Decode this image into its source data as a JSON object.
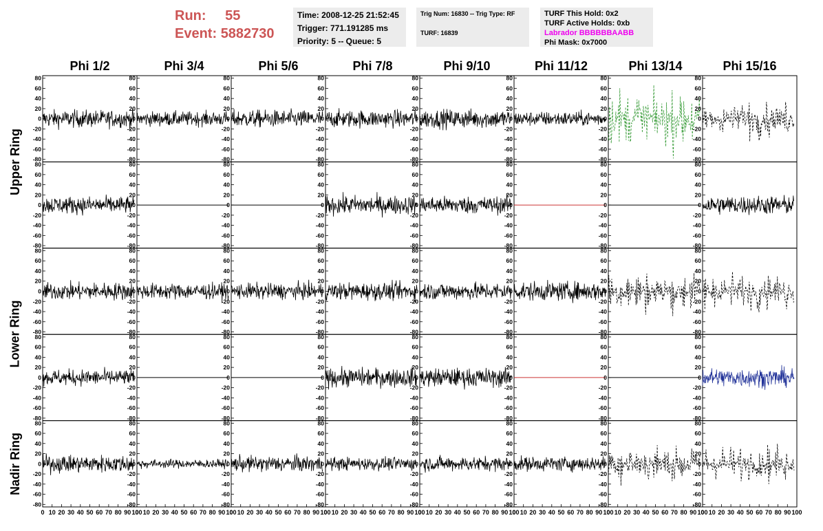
{
  "header": {
    "run_label": "Run:",
    "run_value": "55",
    "event_label": "Event:",
    "event_value": "5882730",
    "time": "Time: 2008-12-25 21:52:45",
    "trigger": "Trigger: 771.191285 ms",
    "priority": "Priority: 5 -- Queue: 5",
    "trig_num": "Trig Num: 16830 -- Trig Type: RF",
    "turf": "TURF: 16839",
    "turf_hold": "TURF This Hold: 0x2",
    "turf_active": "TURF Active Holds: 0xb",
    "labrador": "Labrador BBBBBBAABB",
    "phi_mask": "Phi Mask: 0x7000"
  },
  "colors": {
    "run_text": "#cc5555",
    "labrador_text": "#ee00ee",
    "trace_default": "#000000",
    "trace_green": "#339933",
    "trace_blue": "#223399",
    "trace_red": "#cc3333"
  },
  "chart_data": {
    "type": "line",
    "columns": [
      "Phi 1/2",
      "Phi 3/4",
      "Phi 5/6",
      "Phi 7/8",
      "Phi 9/10",
      "Phi 11/12",
      "Phi 13/14",
      "Phi 15/16"
    ],
    "ring_labels": [
      {
        "text": "Upper Ring",
        "rows": [
          0,
          1
        ]
      },
      {
        "text": "Lower Ring",
        "rows": [
          2,
          3
        ]
      },
      {
        "text": "Nadir Ring",
        "rows": [
          4
        ]
      }
    ],
    "ylim": [
      -85,
      85
    ],
    "y_ticks": [
      -80,
      -60,
      -40,
      -20,
      0,
      20,
      40,
      60,
      80
    ],
    "xlim": [
      0,
      100
    ],
    "x_ticks": [
      0,
      10,
      20,
      30,
      40,
      50,
      60,
      70,
      80,
      90,
      100
    ],
    "x_tick_labels": [
      "0",
      "10",
      "20",
      "30",
      "40",
      "50",
      "60",
      "70",
      "80",
      "90",
      "100"
    ],
    "grid": false,
    "panels": [
      [
        {
          "style": "noise",
          "amp": 12,
          "color": "#000000"
        },
        {
          "style": "noise",
          "amp": 10,
          "color": "#000000"
        },
        {
          "style": "noise",
          "amp": 12,
          "color": "#000000"
        },
        {
          "style": "noise",
          "amp": 12,
          "color": "#000000"
        },
        {
          "style": "noise",
          "amp": 13,
          "color": "#000000"
        },
        {
          "style": "noise",
          "amp": 10,
          "color": "#000000"
        },
        {
          "style": "dashed",
          "amp": 30,
          "color": "#339933"
        },
        {
          "style": "dashed",
          "amp": 20,
          "color": "#000000"
        }
      ],
      [
        {
          "style": "noise",
          "amp": 12,
          "color": "#000000"
        },
        {
          "style": "flat",
          "amp": 0,
          "color": "#000000"
        },
        {
          "style": "flat",
          "amp": 0,
          "color": "#000000"
        },
        {
          "style": "noise",
          "amp": 13,
          "color": "#000000"
        },
        {
          "style": "noise",
          "amp": 12,
          "color": "#000000"
        },
        {
          "style": "flat",
          "amp": 0,
          "color": "#cc3333"
        },
        {
          "style": "flat",
          "amp": 0,
          "color": "#000000"
        },
        {
          "style": "noise",
          "amp": 13,
          "color": "#000000"
        }
      ],
      [
        {
          "style": "noise",
          "amp": 12,
          "color": "#000000"
        },
        {
          "style": "noise",
          "amp": 11,
          "color": "#000000"
        },
        {
          "style": "noise",
          "amp": 11,
          "color": "#000000"
        },
        {
          "style": "noise",
          "amp": 12,
          "color": "#000000"
        },
        {
          "style": "noise",
          "amp": 12,
          "color": "#000000"
        },
        {
          "style": "noise",
          "amp": 13,
          "color": "#000000"
        },
        {
          "style": "dashed",
          "amp": 22,
          "color": "#000000"
        },
        {
          "style": "dashed",
          "amp": 18,
          "color": "#000000"
        }
      ],
      [
        {
          "style": "noise",
          "amp": 11,
          "color": "#000000"
        },
        {
          "style": "flat",
          "amp": 0,
          "color": "#000000"
        },
        {
          "style": "flat",
          "amp": 0,
          "color": "#000000"
        },
        {
          "style": "noise",
          "amp": 13,
          "color": "#000000"
        },
        {
          "style": "noise",
          "amp": 13,
          "color": "#000000"
        },
        {
          "style": "flat",
          "amp": 0,
          "color": "#cc3333"
        },
        {
          "style": "flat",
          "amp": 0,
          "color": "#000000"
        },
        {
          "style": "noise",
          "amp": 13,
          "color": "#223399"
        }
      ],
      [
        {
          "style": "noise",
          "amp": 12,
          "color": "#000000"
        },
        {
          "style": "noise",
          "amp": 6,
          "color": "#000000"
        },
        {
          "style": "noise",
          "amp": 11,
          "color": "#000000"
        },
        {
          "style": "noise",
          "amp": 9,
          "color": "#000000"
        },
        {
          "style": "noise",
          "amp": 10,
          "color": "#000000"
        },
        {
          "style": "noise",
          "amp": 10,
          "color": "#000000"
        },
        {
          "style": "dashed",
          "amp": 22,
          "color": "#000000"
        },
        {
          "style": "dashed",
          "amp": 18,
          "color": "#000000"
        }
      ]
    ]
  }
}
